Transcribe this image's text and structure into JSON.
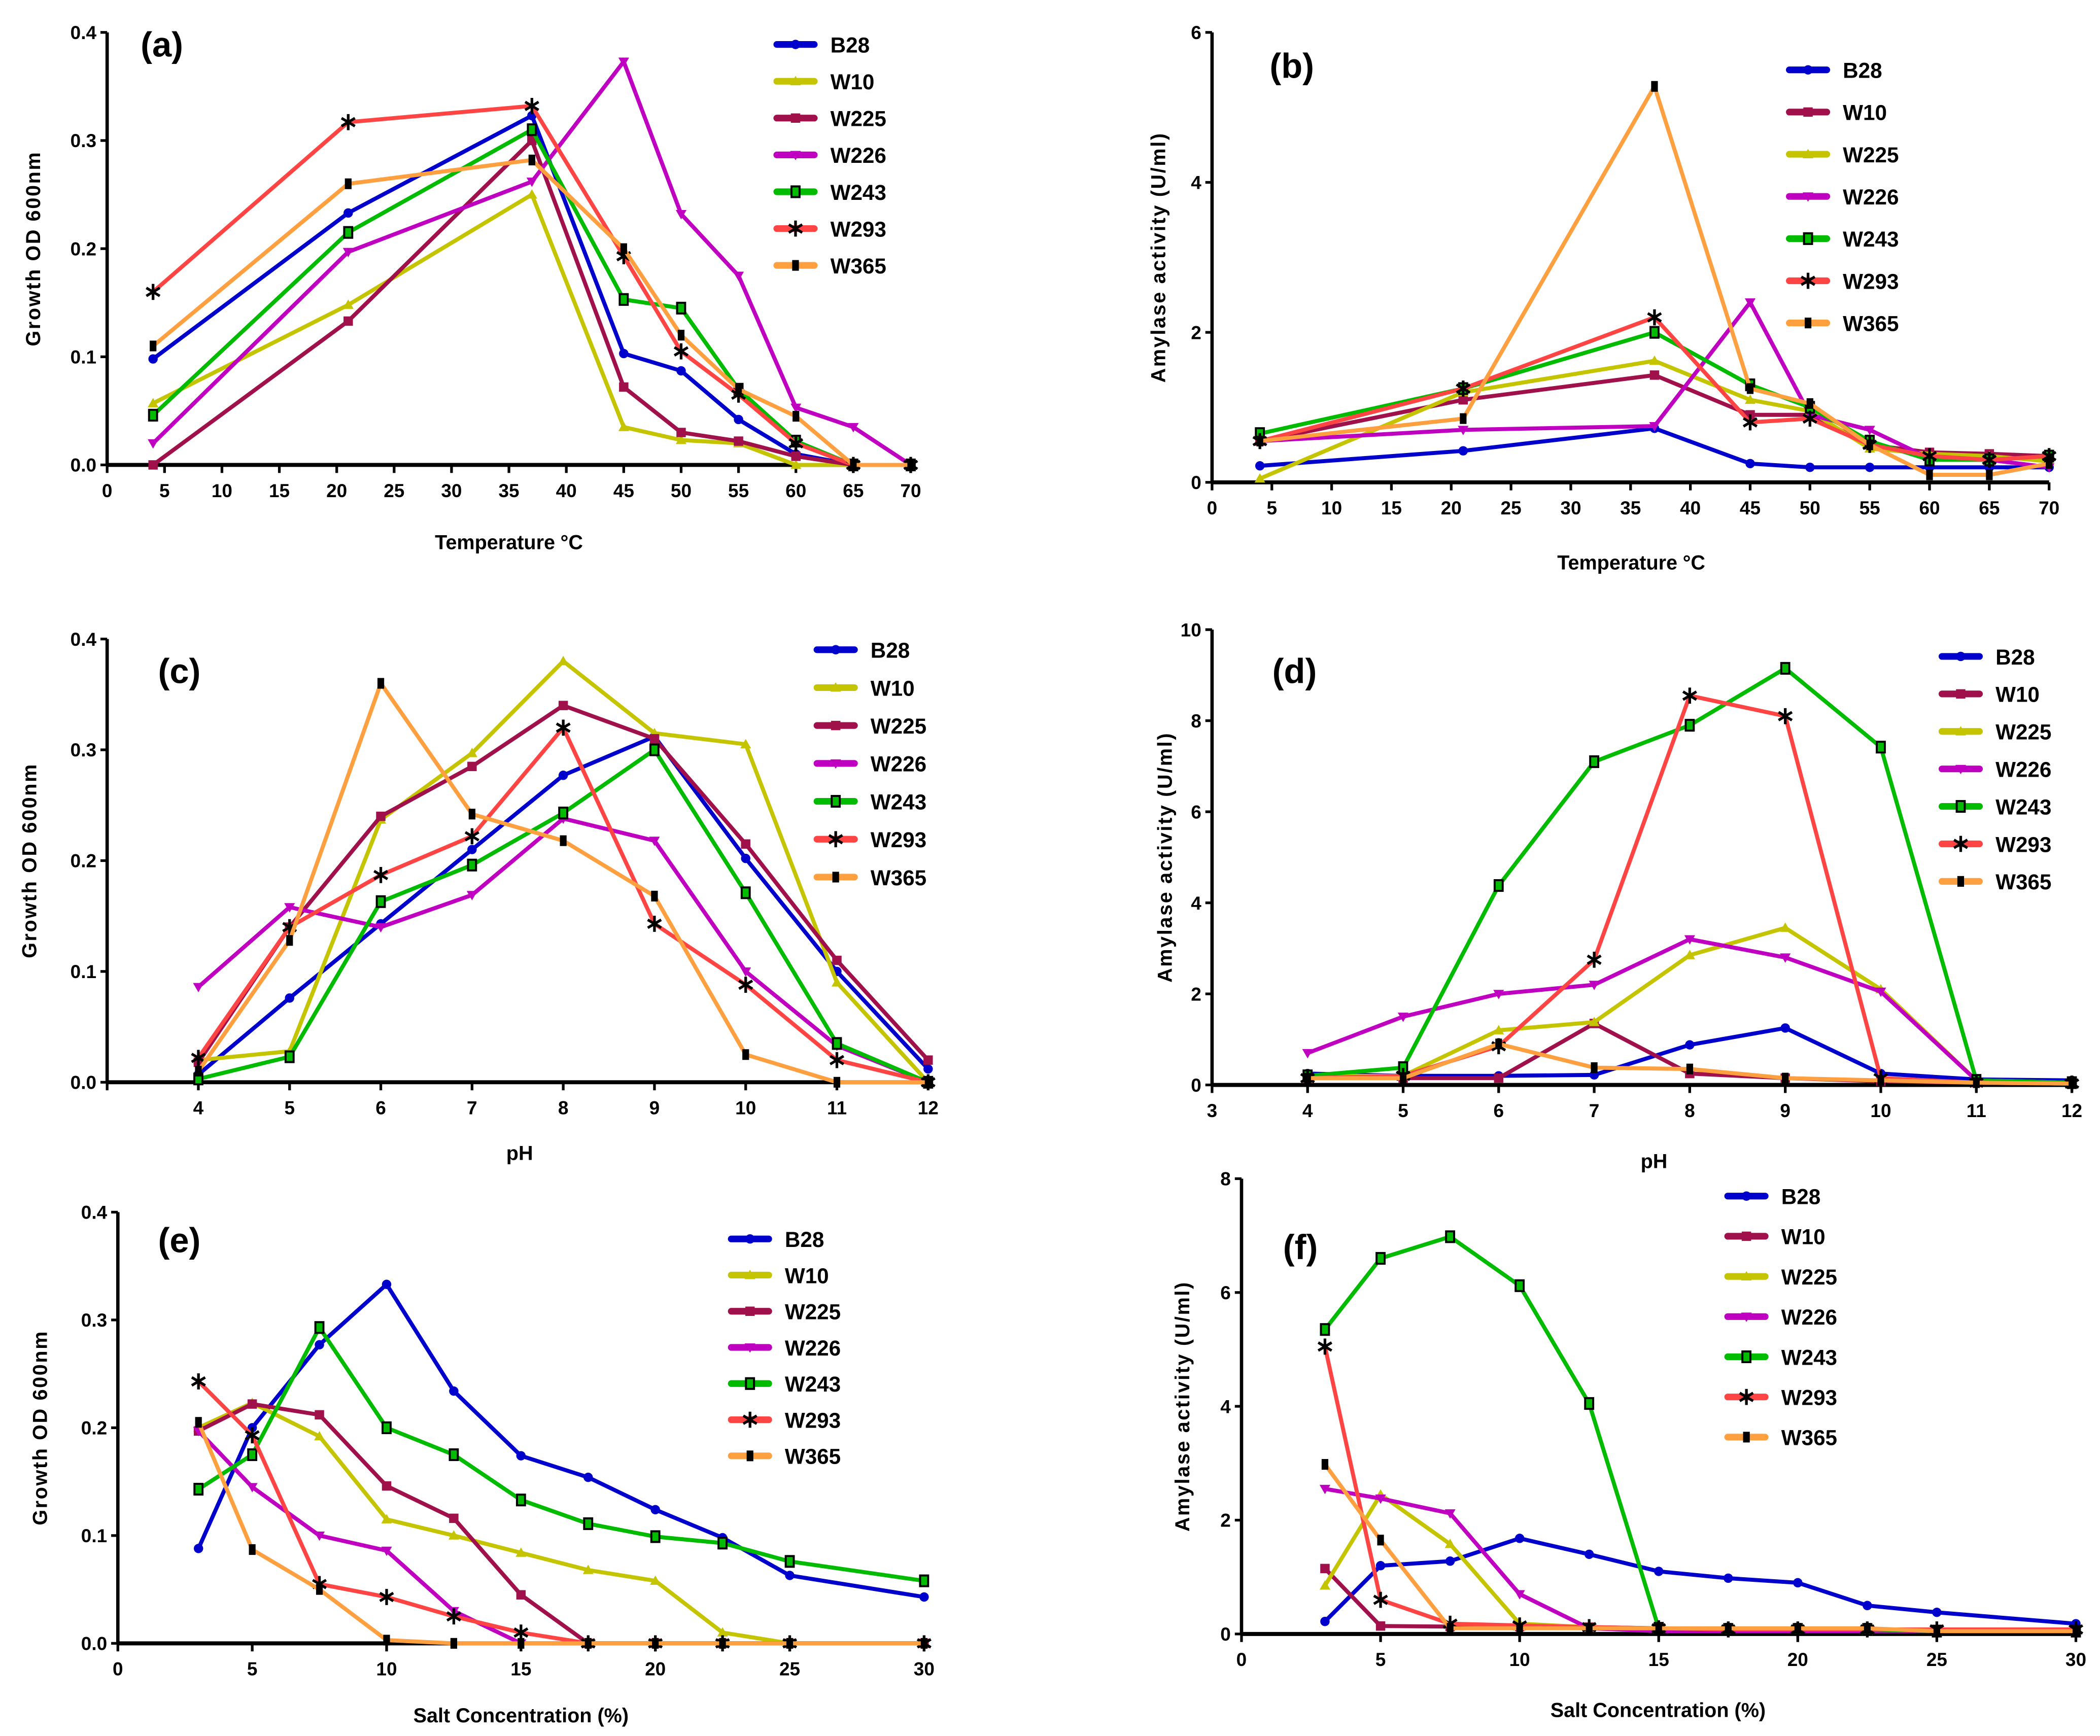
{
  "chart_data": [
    {
      "type": "line",
      "panel_label": "(a)",
      "xlabel": "Temperature",
      "xlabel_unit": "°C",
      "ylabel": "Growth OD 600nm",
      "x": [
        4,
        21,
        37,
        45,
        50,
        55,
        60,
        65,
        70
      ],
      "xlim": [
        0,
        70
      ],
      "ylim": [
        0,
        0.4
      ],
      "xticks": [
        "0",
        "5",
        "10",
        "15",
        "20",
        "25",
        "30",
        "35",
        "40",
        "45",
        "50",
        "55",
        "60",
        "65",
        "70"
      ],
      "yticks": [
        "0.0",
        "0.1",
        "0.2",
        "0.3",
        "0.4"
      ],
      "series": [
        {
          "name": "B28",
          "color": "#0000cc",
          "marker": "circle",
          "values": [
            0.098,
            0.233,
            0.323,
            0.103,
            0.087,
            0.042,
            0.01,
            0,
            0
          ]
        },
        {
          "name": "W10",
          "color": "#c4c400",
          "marker": "triangle",
          "values": [
            0.057,
            0.148,
            0.25,
            0.035,
            0.023,
            0.02,
            0,
            0,
            0
          ]
        },
        {
          "name": "W225",
          "color": "#a0104a",
          "marker": "square",
          "values": [
            0,
            0.133,
            0.3,
            0.072,
            0.03,
            0.022,
            0.008,
            0,
            0
          ]
        },
        {
          "name": "W226",
          "color": "#c000c0",
          "marker": "tri-down",
          "values": [
            0.02,
            0.197,
            0.262,
            0.373,
            0.232,
            0.175,
            0.053,
            0.035,
            0
          ]
        },
        {
          "name": "W243",
          "color": "#00bb00",
          "marker": "open-square",
          "values": [
            0.046,
            0.215,
            0.31,
            0.153,
            0.145,
            0.07,
            0.022,
            0,
            0
          ]
        },
        {
          "name": "W293",
          "color": "#ff4444",
          "marker": "asterisk",
          "values": [
            0.16,
            0.317,
            0.332,
            0.193,
            0.105,
            0.065,
            0.02,
            0,
            0
          ]
        },
        {
          "name": "W365",
          "color": "#ffa040",
          "marker": "black-rect",
          "values": [
            0.11,
            0.26,
            0.282,
            0.2,
            0.12,
            0.07,
            0.045,
            0,
            0
          ]
        }
      ]
    },
    {
      "type": "line",
      "panel_label": "(b)",
      "xlabel": "Temperature",
      "xlabel_unit": "°C",
      "ylabel": "Amylase activity (U/ml)",
      "x": [
        4,
        21,
        37,
        45,
        50,
        55,
        60,
        65,
        70
      ],
      "xlim": [
        0,
        70
      ],
      "ylim": [
        0,
        6
      ],
      "xticks": [
        "0",
        "5",
        "10",
        "15",
        "20",
        "25",
        "30",
        "35",
        "40",
        "45",
        "50",
        "55",
        "60",
        "65",
        "70"
      ],
      "yticks": [
        "0",
        "2",
        "4",
        "6"
      ],
      "series": [
        {
          "name": "B28",
          "color": "#0000cc",
          "marker": "circle",
          "values": [
            0.22,
            0.42,
            0.72,
            0.25,
            0.2,
            0.2,
            0.2,
            0.2,
            0.2
          ]
        },
        {
          "name": "W10",
          "color": "#a0104a",
          "marker": "square",
          "values": [
            0.55,
            1.1,
            1.43,
            0.9,
            0.9,
            0.5,
            0.4,
            0.38,
            0.35
          ]
        },
        {
          "name": "W225",
          "color": "#c4c400",
          "marker": "triangle",
          "values": [
            0.05,
            1.2,
            1.62,
            1.1,
            0.95,
            0.45,
            0.38,
            0.35,
            0.28
          ]
        },
        {
          "name": "W226",
          "color": "#c000c0",
          "marker": "tri-down",
          "values": [
            0.55,
            0.7,
            0.75,
            2.4,
            0.9,
            0.7,
            0.32,
            0.3,
            0.2
          ]
        },
        {
          "name": "W243",
          "color": "#00bb00",
          "marker": "open-square",
          "values": [
            0.65,
            1.25,
            2.0,
            1.3,
            1.0,
            0.55,
            0.3,
            0.3,
            0.35
          ]
        },
        {
          "name": "W293",
          "color": "#ff4444",
          "marker": "asterisk",
          "values": [
            0.55,
            1.25,
            2.2,
            0.8,
            0.85,
            0.5,
            0.35,
            0.3,
            0.35
          ]
        },
        {
          "name": "W365",
          "color": "#ffa040",
          "marker": "black-rect",
          "values": [
            0.55,
            0.85,
            5.28,
            1.25,
            1.05,
            0.5,
            0.1,
            0.1,
            0.25
          ]
        }
      ]
    },
    {
      "type": "line",
      "panel_label": "(c)",
      "xlabel": "pH",
      "xlabel_unit": "",
      "ylabel": "Growth OD 600nm",
      "x": [
        4,
        5,
        6,
        7,
        8,
        9,
        10,
        11,
        12
      ],
      "xlim": [
        3,
        12
      ],
      "ylim": [
        0,
        0.4
      ],
      "xticks": [
        "",
        "4",
        "5",
        "6",
        "7",
        "8",
        "9",
        "10",
        "11",
        "12"
      ],
      "yticks": [
        "0.0",
        "0.1",
        "0.2",
        "0.3",
        "0.4"
      ],
      "series": [
        {
          "name": "B28",
          "color": "#0000cc",
          "marker": "circle",
          "values": [
            0.007,
            0.076,
            0.143,
            0.21,
            0.277,
            0.312,
            0.202,
            0.1,
            0.012
          ]
        },
        {
          "name": "W10",
          "color": "#c4c400",
          "marker": "triangle",
          "values": [
            0.02,
            0.028,
            0.237,
            0.297,
            0.38,
            0.315,
            0.305,
            0.09,
            0
          ]
        },
        {
          "name": "W225",
          "color": "#a0104a",
          "marker": "square",
          "values": [
            0.018,
            0.14,
            0.24,
            0.285,
            0.34,
            0.31,
            0.215,
            0.11,
            0.02
          ]
        },
        {
          "name": "W226",
          "color": "#c000c0",
          "marker": "tri-down",
          "values": [
            0.086,
            0.158,
            0.14,
            0.169,
            0.238,
            0.218,
            0.1,
            0.033,
            0
          ]
        },
        {
          "name": "W243",
          "color": "#00bb00",
          "marker": "open-square",
          "values": [
            0.003,
            0.023,
            0.163,
            0.196,
            0.243,
            0.3,
            0.171,
            0.035,
            0
          ]
        },
        {
          "name": "W293",
          "color": "#ff4444",
          "marker": "asterisk",
          "values": [
            0.022,
            0.14,
            0.187,
            0.222,
            0.32,
            0.143,
            0.088,
            0.02,
            0
          ]
        },
        {
          "name": "W365",
          "color": "#ffa040",
          "marker": "black-rect",
          "values": [
            0.01,
            0.128,
            0.36,
            0.242,
            0.218,
            0.168,
            0.025,
            0,
            0
          ]
        }
      ]
    },
    {
      "type": "line",
      "panel_label": "(d)",
      "xlabel": "pH",
      "xlabel_unit": "",
      "ylabel": "Amylase activity (U/ml)",
      "x": [
        4,
        5,
        6,
        7,
        8,
        9,
        10,
        11,
        12
      ],
      "xlim": [
        3,
        12
      ],
      "ylim": [
        0,
        10
      ],
      "xticks": [
        "3",
        "4",
        "5",
        "6",
        "7",
        "8",
        "9",
        "10",
        "11",
        "12"
      ],
      "yticks": [
        "0",
        "2",
        "4",
        "6",
        "8",
        "10"
      ],
      "series": [
        {
          "name": "B28",
          "color": "#0000cc",
          "marker": "circle",
          "values": [
            0.25,
            0.2,
            0.2,
            0.22,
            0.88,
            1.25,
            0.25,
            0.12,
            0.1
          ]
        },
        {
          "name": "W10",
          "color": "#a0104a",
          "marker": "square",
          "values": [
            0.15,
            0.15,
            0.15,
            1.35,
            0.25,
            0.15,
            0.08,
            0.05,
            0.03
          ]
        },
        {
          "name": "W225",
          "color": "#c4c400",
          "marker": "triangle",
          "values": [
            0.2,
            0.2,
            1.2,
            1.38,
            2.85,
            3.45,
            2.1,
            0.1,
            0.05
          ]
        },
        {
          "name": "W226",
          "color": "#c000c0",
          "marker": "tri-down",
          "values": [
            0.7,
            1.5,
            2.0,
            2.2,
            3.2,
            2.8,
            2.05,
            0.1,
            0.05
          ]
        },
        {
          "name": "W243",
          "color": "#00bb00",
          "marker": "open-square",
          "values": [
            0.2,
            0.38,
            4.38,
            7.1,
            7.9,
            9.15,
            7.42,
            0.1,
            0.05
          ]
        },
        {
          "name": "W293",
          "color": "#ff4444",
          "marker": "asterisk",
          "values": [
            0.15,
            0.2,
            0.85,
            2.75,
            8.55,
            8.1,
            0.15,
            0.05,
            0.03
          ]
        },
        {
          "name": "W365",
          "color": "#ffa040",
          "marker": "black-rect",
          "values": [
            0.15,
            0.15,
            0.9,
            0.38,
            0.35,
            0.15,
            0.1,
            0.05,
            0.03
          ]
        }
      ]
    },
    {
      "type": "line",
      "panel_label": "(e)",
      "xlabel": "Salt Concentration (%)",
      "xlabel_unit": "",
      "ylabel": "Growth OD 600nm",
      "x": [
        3,
        5,
        7.5,
        10,
        12.5,
        15,
        17.5,
        20,
        22.5,
        25,
        30
      ],
      "xlim": [
        0,
        30
      ],
      "ylim": [
        0,
        0.4
      ],
      "xticks": [
        "0",
        "5",
        "10",
        "15",
        "20",
        "25",
        "30"
      ],
      "yticks": [
        "0.0",
        "0.1",
        "0.2",
        "0.3",
        "0.4"
      ],
      "series": [
        {
          "name": "B28",
          "color": "#0000cc",
          "marker": "circle",
          "values": [
            0.088,
            0.2,
            0.277,
            0.333,
            0.234,
            0.174,
            0.154,
            0.124,
            0.098,
            0.063,
            0.043
          ]
        },
        {
          "name": "W10",
          "color": "#c4c400",
          "marker": "triangle",
          "values": [
            0.2,
            0.223,
            0.192,
            0.115,
            0.1,
            0.084,
            0.068,
            0.058,
            0.01,
            0,
            0
          ]
        },
        {
          "name": "W225",
          "color": "#a0104a",
          "marker": "square",
          "values": [
            0.197,
            0.222,
            0.212,
            0.146,
            0.116,
            0.045,
            0,
            0,
            0,
            0,
            0
          ]
        },
        {
          "name": "W226",
          "color": "#c000c0",
          "marker": "tri-down",
          "values": [
            0.197,
            0.145,
            0.1,
            0.086,
            0.03,
            0,
            0,
            0,
            0,
            0,
            0
          ]
        },
        {
          "name": "W243",
          "color": "#00bb00",
          "marker": "open-square",
          "values": [
            0.143,
            0.175,
            0.293,
            0.2,
            0.175,
            0.133,
            0.111,
            0.099,
            0.093,
            0.076,
            0.058
          ]
        },
        {
          "name": "W293",
          "color": "#ff4444",
          "marker": "asterisk",
          "values": [
            0.243,
            0.193,
            0.055,
            0.043,
            0.025,
            0.01,
            0,
            0,
            0,
            0,
            0
          ]
        },
        {
          "name": "W365",
          "color": "#ffa040",
          "marker": "black-rect",
          "values": [
            0.205,
            0.087,
            0.05,
            0.003,
            0,
            0,
            0,
            0,
            0,
            0,
            0
          ]
        }
      ]
    },
    {
      "type": "line",
      "panel_label": "(f)",
      "xlabel": "Salt Concentration (%)",
      "xlabel_unit": "",
      "ylabel": "Amylase activity (U/ml)",
      "x": [
        3,
        5,
        7.5,
        10,
        12.5,
        15,
        17.5,
        20,
        22.5,
        25,
        30
      ],
      "xlim": [
        0,
        30
      ],
      "ylim": [
        0,
        8
      ],
      "xticks": [
        "0",
        "5",
        "10",
        "15",
        "20",
        "25",
        "30"
      ],
      "yticks": [
        "0",
        "2",
        "4",
        "6",
        "8"
      ],
      "series": [
        {
          "name": "B28",
          "color": "#0000cc",
          "marker": "circle",
          "values": [
            0.22,
            1.2,
            1.28,
            1.68,
            1.4,
            1.1,
            0.98,
            0.9,
            0.5,
            0.38,
            0.18
          ]
        },
        {
          "name": "W10",
          "color": "#a0104a",
          "marker": "square",
          "values": [
            1.15,
            0.14,
            0.13,
            0.13,
            0.12,
            0.1,
            0.08,
            0.08,
            0.08,
            0.08,
            0.08
          ]
        },
        {
          "name": "W225",
          "color": "#c4c400",
          "marker": "triangle",
          "values": [
            0.85,
            2.45,
            1.58,
            0.18,
            0.12,
            0.08,
            0.08,
            0.08,
            0.05,
            0.05,
            0.05
          ]
        },
        {
          "name": "W226",
          "color": "#c000c0",
          "marker": "tri-down",
          "values": [
            2.55,
            2.38,
            2.12,
            0.7,
            0.1,
            0.05,
            0.05,
            0.05,
            0.05,
            0.05,
            0.05
          ]
        },
        {
          "name": "W243",
          "color": "#00bb00",
          "marker": "open-square",
          "values": [
            5.35,
            6.6,
            6.98,
            6.12,
            4.05,
            0.1,
            0.08,
            0.08,
            0.08,
            0.05,
            0.05
          ]
        },
        {
          "name": "W293",
          "color": "#ff4444",
          "marker": "asterisk",
          "values": [
            5.05,
            0.6,
            0.18,
            0.15,
            0.12,
            0.1,
            0.08,
            0.08,
            0.08,
            0.08,
            0.08
          ]
        },
        {
          "name": "W365",
          "color": "#ffa040",
          "marker": "black-rect",
          "values": [
            2.98,
            1.65,
            0.1,
            0.1,
            0.1,
            0.1,
            0.1,
            0.1,
            0.1,
            0.05,
            0.05
          ]
        }
      ]
    }
  ]
}
